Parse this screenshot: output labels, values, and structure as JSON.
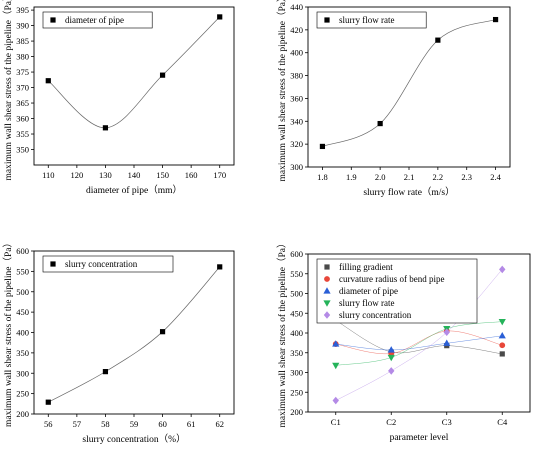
{
  "chart_data": [
    {
      "type": "scatter",
      "xlabel": "diameter of pipe（mm）",
      "ylabel": "maximum wall shear stress of the pipeline（Pa）",
      "xlim": [
        105,
        175
      ],
      "ylim": [
        345,
        396
      ],
      "xticks": [
        "110",
        "120",
        "130",
        "140",
        "150",
        "160",
        "170"
      ],
      "yticks": [
        "350",
        "355",
        "360",
        "365",
        "370",
        "375",
        "380",
        "385",
        "390",
        "395"
      ],
      "legend": "top-left",
      "grid": false,
      "series": [
        {
          "name": "diameter of pipe",
          "x": [
            110,
            130,
            150,
            170
          ],
          "y": [
            372.2,
            357.0,
            374.0,
            392.8
          ],
          "marker": "square",
          "color": "#000000"
        }
      ]
    },
    {
      "type": "scatter",
      "xlabel": "slurry flow rate（m/s）",
      "ylabel": "maximum wall shear stress of the pipeline（Pa）",
      "xlim": [
        1.75,
        2.45
      ],
      "ylim": [
        300,
        440
      ],
      "xticks": [
        "1.8",
        "1.9",
        "2.0",
        "2.1",
        "2.2",
        "2.3",
        "2.4"
      ],
      "yticks": [
        "300",
        "320",
        "340",
        "360",
        "380",
        "400",
        "420",
        "440"
      ],
      "legend": "top-left",
      "grid": false,
      "series": [
        {
          "name": "slurry flow rate",
          "x": [
            1.8,
            2.0,
            2.2,
            2.4
          ],
          "y": [
            318,
            338,
            411,
            429
          ],
          "marker": "square",
          "color": "#000000"
        }
      ]
    },
    {
      "type": "scatter",
      "xlabel": "slurry concentration（%）",
      "ylabel": "maximum wall shear stress of the pipeline（Pa）",
      "xlim": [
        55.5,
        62.5
      ],
      "ylim": [
        200,
        600
      ],
      "xticks": [
        "56",
        "57",
        "58",
        "59",
        "60",
        "61",
        "62"
      ],
      "yticks": [
        "200",
        "250",
        "300",
        "350",
        "400",
        "450",
        "500",
        "550",
        "600"
      ],
      "legend": "top-left",
      "grid": false,
      "series": [
        {
          "name": "slurry concentration",
          "x": [
            56,
            58,
            60,
            62
          ],
          "y": [
            229,
            304,
            402,
            561
          ],
          "marker": "square",
          "color": "#000000"
        }
      ]
    },
    {
      "type": "scatter",
      "xlabel": "parameter level",
      "ylabel": "maximum wall shear stress of the pipeline（Pa）",
      "categories": [
        "C1",
        "C2",
        "C3",
        "C4"
      ],
      "ylim": [
        200,
        600
      ],
      "yticks": [
        "200",
        "250",
        "300",
        "350",
        "400",
        "450",
        "500",
        "550",
        "600"
      ],
      "legend": "top-left",
      "grid": false,
      "series": [
        {
          "name": "filling gradient",
          "values": [
            432,
            352,
            368,
            347
          ],
          "marker": "square",
          "color": "#4a4a4a"
        },
        {
          "name": "curvature radius of bend pipe",
          "values": [
            372,
            348,
            405,
            369
          ],
          "marker": "circle",
          "color": "#e8473a"
        },
        {
          "name": "diameter of pipe",
          "values": [
            372,
            357,
            374,
            393
          ],
          "marker": "triangle-up",
          "color": "#2a5fd6"
        },
        {
          "name": "slurry flow rate",
          "values": [
            318,
            338,
            411,
            429
          ],
          "marker": "triangle-down",
          "color": "#25b35a"
        },
        {
          "name": "slurry concentration",
          "values": [
            229,
            304,
            402,
            561
          ],
          "marker": "diamond",
          "color": "#b48ae6"
        }
      ]
    }
  ]
}
